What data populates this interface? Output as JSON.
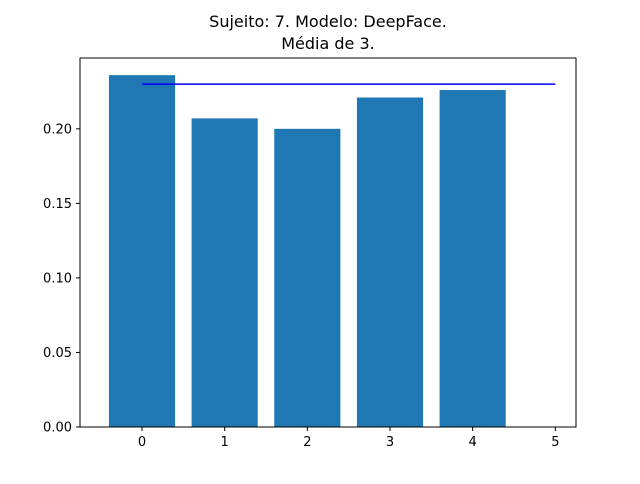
{
  "chart_data": {
    "type": "bar",
    "title_lines": [
      "Sujeito: 7. Modelo: DeepFace.",
      "Média de 3."
    ],
    "xlabel": "",
    "ylabel": "",
    "categories": [
      0,
      1,
      2,
      3,
      4
    ],
    "values": [
      0.236,
      0.207,
      0.2,
      0.221,
      0.226
    ],
    "bar_color": "#1f77b4",
    "reference_line": {
      "x_start": 0,
      "x_end": 5,
      "y": 0.23,
      "color": "#0000ff"
    },
    "xlim": [
      -0.75,
      5.25
    ],
    "ylim": [
      0,
      0.2475
    ],
    "x_ticks": [
      0,
      1,
      2,
      3,
      4,
      5
    ],
    "x_tick_labels": [
      "0",
      "1",
      "2",
      "3",
      "4",
      "5"
    ],
    "y_ticks": [
      0.0,
      0.05,
      0.1,
      0.15,
      0.2
    ],
    "y_tick_labels": [
      "0.00",
      "0.05",
      "0.10",
      "0.15",
      "0.20"
    ],
    "grid": false,
    "legend": "none"
  }
}
